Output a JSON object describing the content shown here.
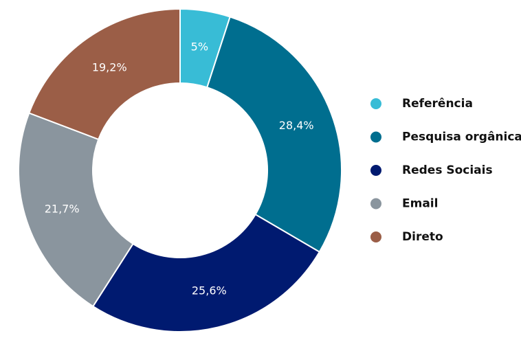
{
  "chart_data": {
    "type": "donut",
    "categories": [
      "Referência",
      "Pesquisa orgânica",
      "Redes Sociais",
      "Email",
      "Direto"
    ],
    "values": [
      5,
      28.4,
      25.6,
      21.7,
      19.2
    ],
    "value_labels": [
      "5%",
      "28,4%",
      "25,6%",
      "21,7%",
      "19,2%"
    ],
    "colors": [
      "#38bcd6",
      "#006e8f",
      "#001a70",
      "#8a959e",
      "#9b5e47"
    ],
    "legend": "right"
  }
}
